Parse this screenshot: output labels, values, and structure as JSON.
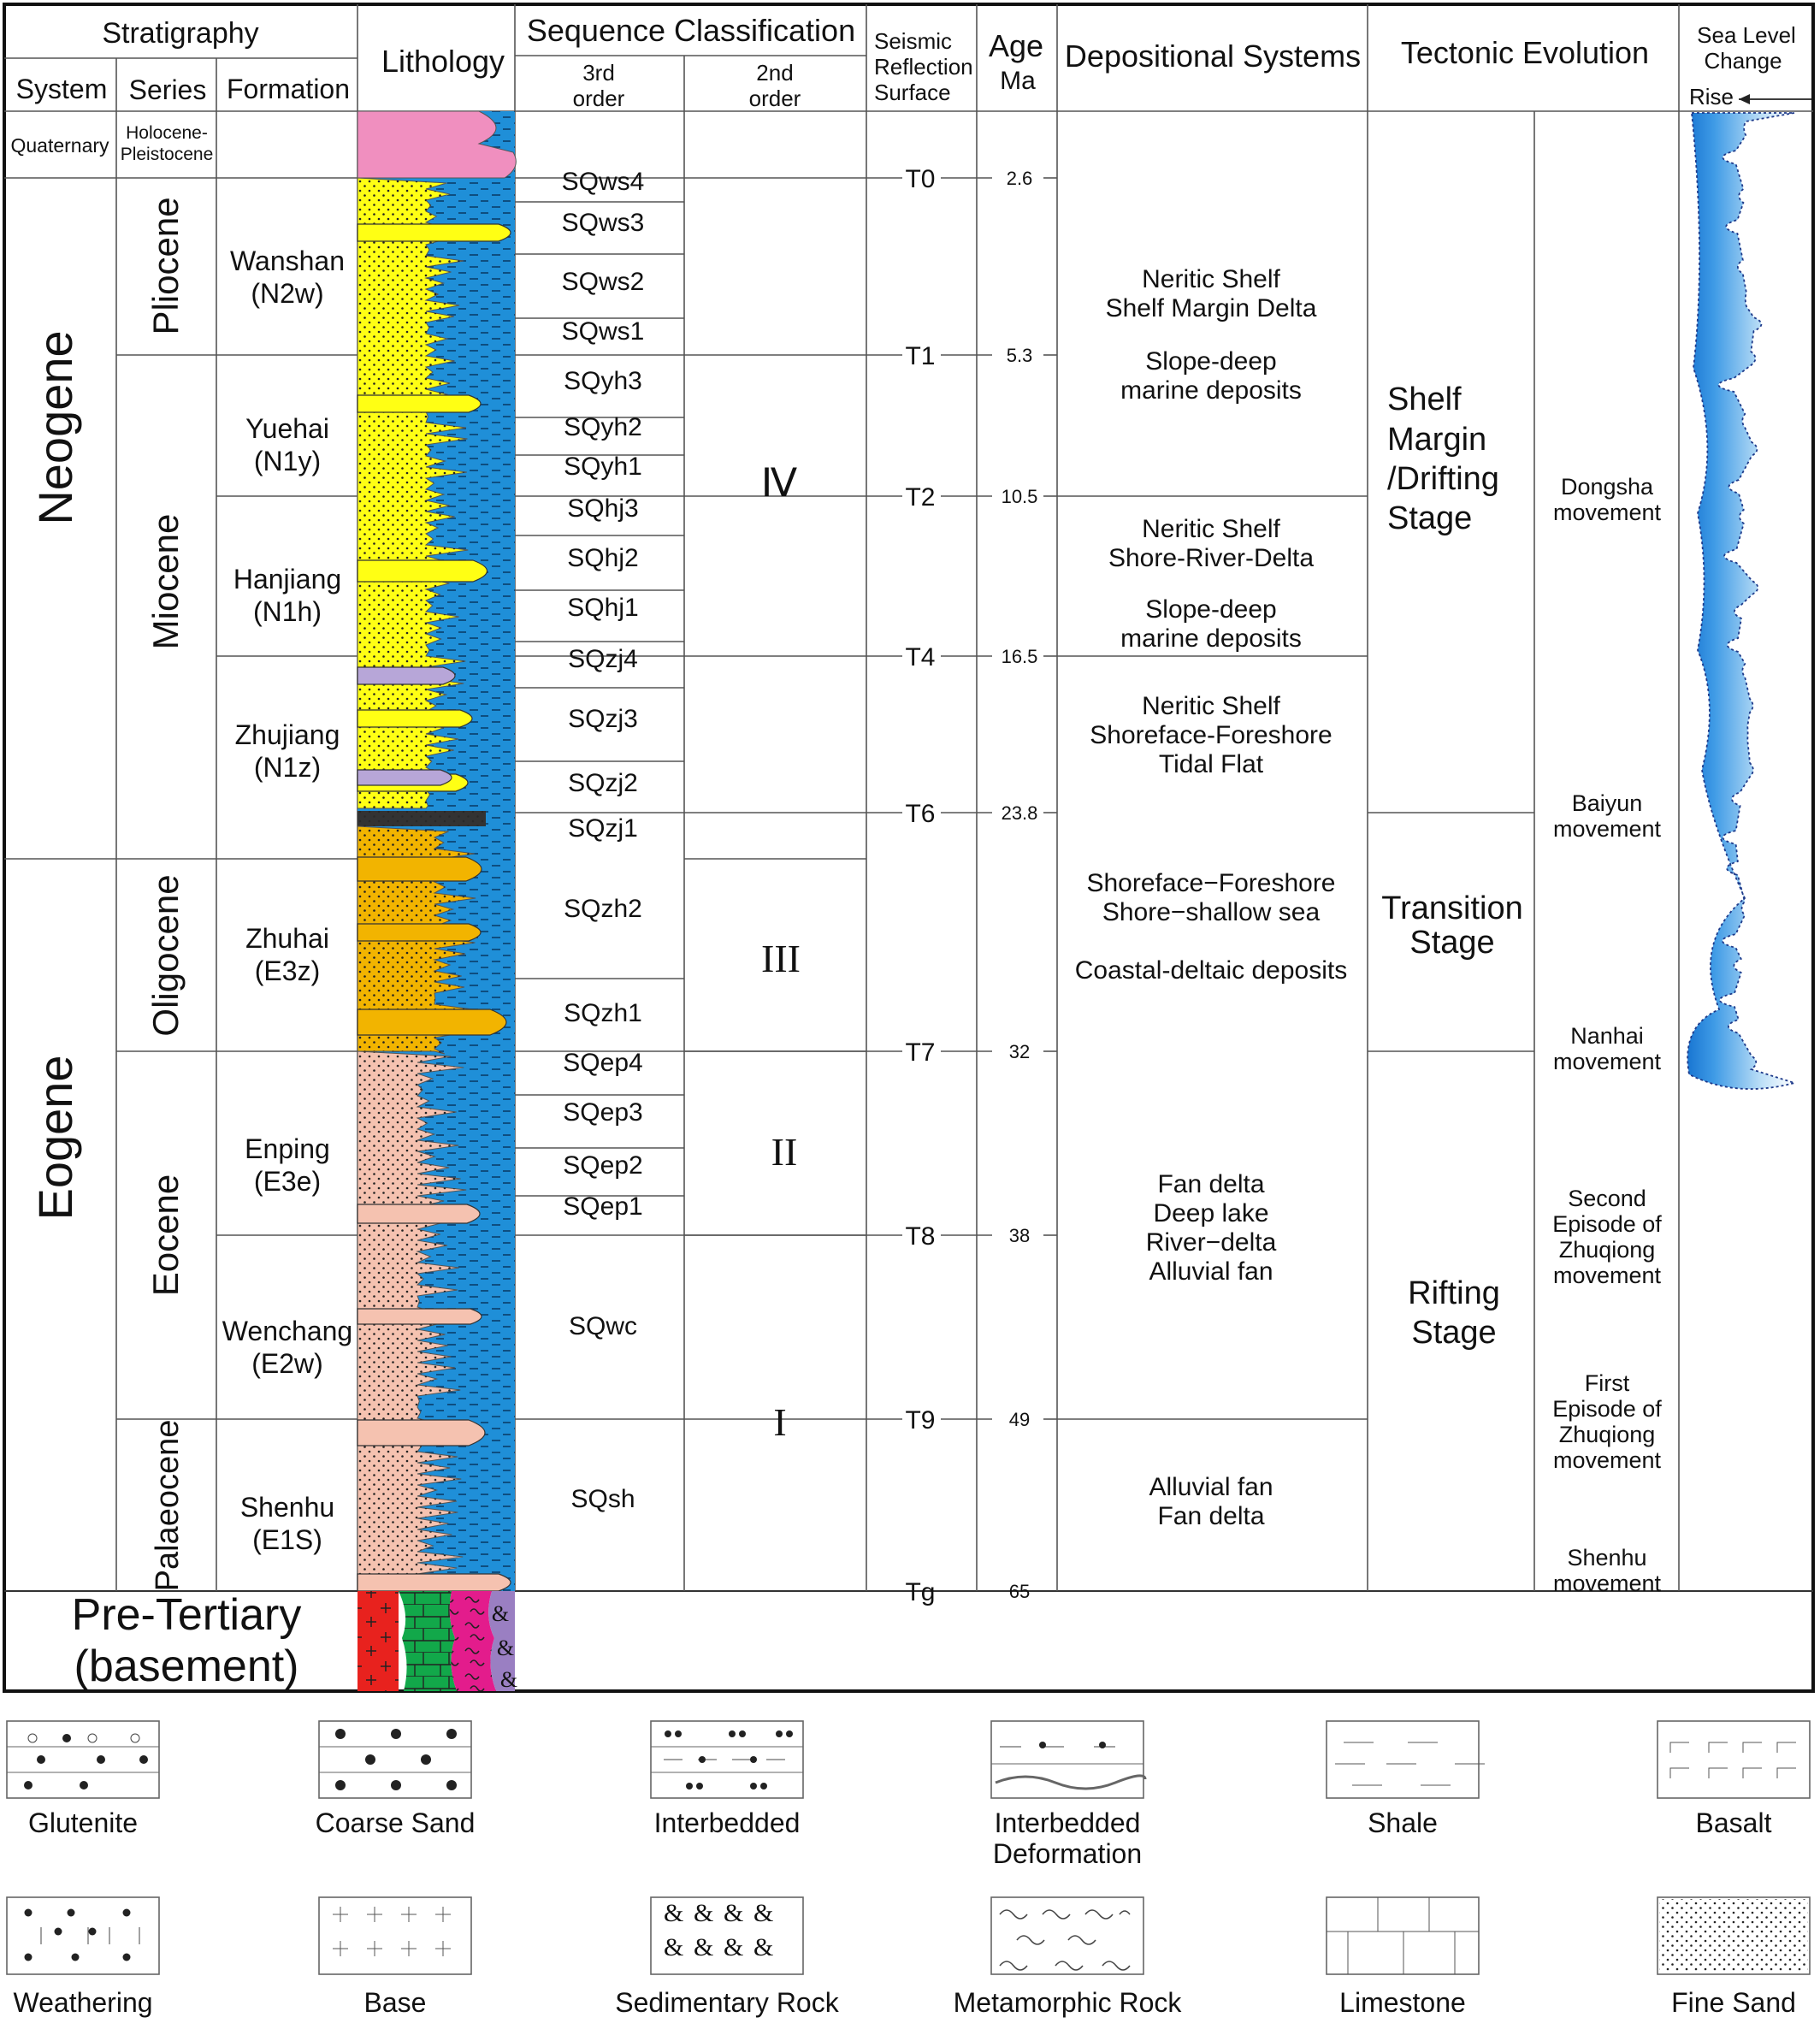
{
  "headers": {
    "stratigraphy": "Stratigraphy",
    "system": "System",
    "series": "Series",
    "formation": "Formation",
    "lithology": "Lithology",
    "sequence_classification": "Sequence  Classification",
    "third_order": [
      "3rd",
      "order"
    ],
    "second_order": [
      "2nd",
      "order"
    ],
    "seismic": [
      "Seismic",
      "Reflection",
      "Surface"
    ],
    "age": [
      "Age",
      "Ma"
    ],
    "depositional_systems": "Depositional  Systems",
    "tectonic_evolution": "Tectonic Evolution",
    "sea_level": [
      "Sea Level",
      "Change"
    ],
    "rise": "Rise"
  },
  "systems": {
    "quaternary": "Quaternary",
    "neogene": "Neogene",
    "eogene": "Eogene",
    "pre_tertiary": [
      "Pre-Tertiary",
      "(basement)"
    ]
  },
  "series": {
    "holocene": [
      "Holocene-",
      "Pleistocene"
    ],
    "pliocene": "Pliocene",
    "miocene": "Miocene",
    "oligocene": "Oligocene",
    "eocene": "Eocene",
    "palaeocene": "Palaeocene"
  },
  "formations": [
    [
      "Wanshan",
      "(N2w)"
    ],
    [
      "Yuehai",
      "(N1y)"
    ],
    [
      "Hanjiang",
      "(N1h)"
    ],
    [
      "Zhujiang",
      "(N1z)"
    ],
    [
      "Zhuhai",
      "(E3z)"
    ],
    [
      "Enping",
      "(E3e)"
    ],
    [
      "Wenchang",
      "(E2w)"
    ],
    [
      "Shenhu",
      "(E1S)"
    ]
  ],
  "third_order_sequences": [
    "SQws4",
    "SQws3",
    "SQws2",
    "SQws1",
    "SQyh3",
    "SQyh2",
    "SQyh1",
    "SQhj3",
    "SQhj2",
    "SQhj1",
    "SQzj4",
    "SQzj3",
    "SQzj2",
    "SQzj1",
    "SQzh2",
    "SQzh1",
    "SQep4",
    "SQep3",
    "SQep2",
    "SQep1",
    "SQwc",
    "SQsh"
  ],
  "second_order_sequences": [
    "Ⅳ",
    "III",
    "II",
    "I"
  ],
  "surfaces": [
    {
      "name": "T0",
      "age": "2.6"
    },
    {
      "name": "T1",
      "age": "5.3"
    },
    {
      "name": "T2",
      "age": "10.5"
    },
    {
      "name": "T4",
      "age": "16.5"
    },
    {
      "name": "T6",
      "age": "23.8"
    },
    {
      "name": "T7",
      "age": "32"
    },
    {
      "name": "T8",
      "age": "38"
    },
    {
      "name": "T9",
      "age": "49"
    },
    {
      "name": "Tg",
      "age": "65"
    }
  ],
  "depositional": [
    [
      "Neritic Shelf",
      "Shelf Margin Delta",
      "Slope-deep",
      "marine deposits"
    ],
    [
      "Neritic Shelf",
      "Shore-River-Delta",
      "Slope-deep",
      "marine deposits"
    ],
    [
      "Neritic Shelf",
      "Shoreface-Foreshore",
      "Tidal Flat"
    ],
    [
      "Shoreface−Foreshore",
      "Shore−shallow  sea",
      "Coastal-deltaic deposits"
    ],
    [
      "Fan  delta",
      "Deep  lake",
      "River−delta",
      "Alluvial  fan"
    ],
    [
      "Alluvial  fan",
      "Fan  delta"
    ]
  ],
  "stages": [
    [
      "Shelf",
      "Margin",
      "/Drifting",
      "Stage"
    ],
    [
      "Transition",
      "Stage"
    ],
    [
      "Rifting",
      "Stage"
    ]
  ],
  "movements": [
    [
      "Dongsha",
      "movement"
    ],
    [
      "Baiyun",
      "movement"
    ],
    [
      "Nanhai",
      "movement"
    ],
    [
      "Second",
      "Episode of",
      "Zhuqiong",
      "movement"
    ],
    [
      "First",
      "Episode of",
      "Zhuqiong",
      "movement"
    ],
    [
      "Shenhu",
      "movement"
    ]
  ],
  "legend": [
    {
      "label": [
        "Glutenite"
      ]
    },
    {
      "label": [
        "Coarse Sand"
      ]
    },
    {
      "label": [
        "Interbedded"
      ]
    },
    {
      "label": [
        "Interbedded",
        "Deformation"
      ]
    },
    {
      "label": [
        "Shale"
      ]
    },
    {
      "label": [
        "Basalt"
      ]
    },
    {
      "label": [
        "Weathering"
      ]
    },
    {
      "label": [
        "Base"
      ]
    },
    {
      "label": [
        "Sedimentary Rock"
      ]
    },
    {
      "label": [
        "Metamorphic Rock"
      ]
    },
    {
      "label": [
        "Limestone"
      ]
    },
    {
      "label": [
        "Fine Sand"
      ]
    }
  ],
  "colors": {
    "sea": "#1f8fd8",
    "quaternary": "#f08fbf",
    "neogene_sand": "#ffff14",
    "oligocene_sand": "#f2b400",
    "eogene_sand": "#f5c2b0",
    "purple_lens": "#b7a6d8",
    "basement_red": "#e8221e",
    "basement_green": "#12a84a",
    "basement_pink": "#e31c8c",
    "basement_purple": "#9a7fc2"
  }
}
